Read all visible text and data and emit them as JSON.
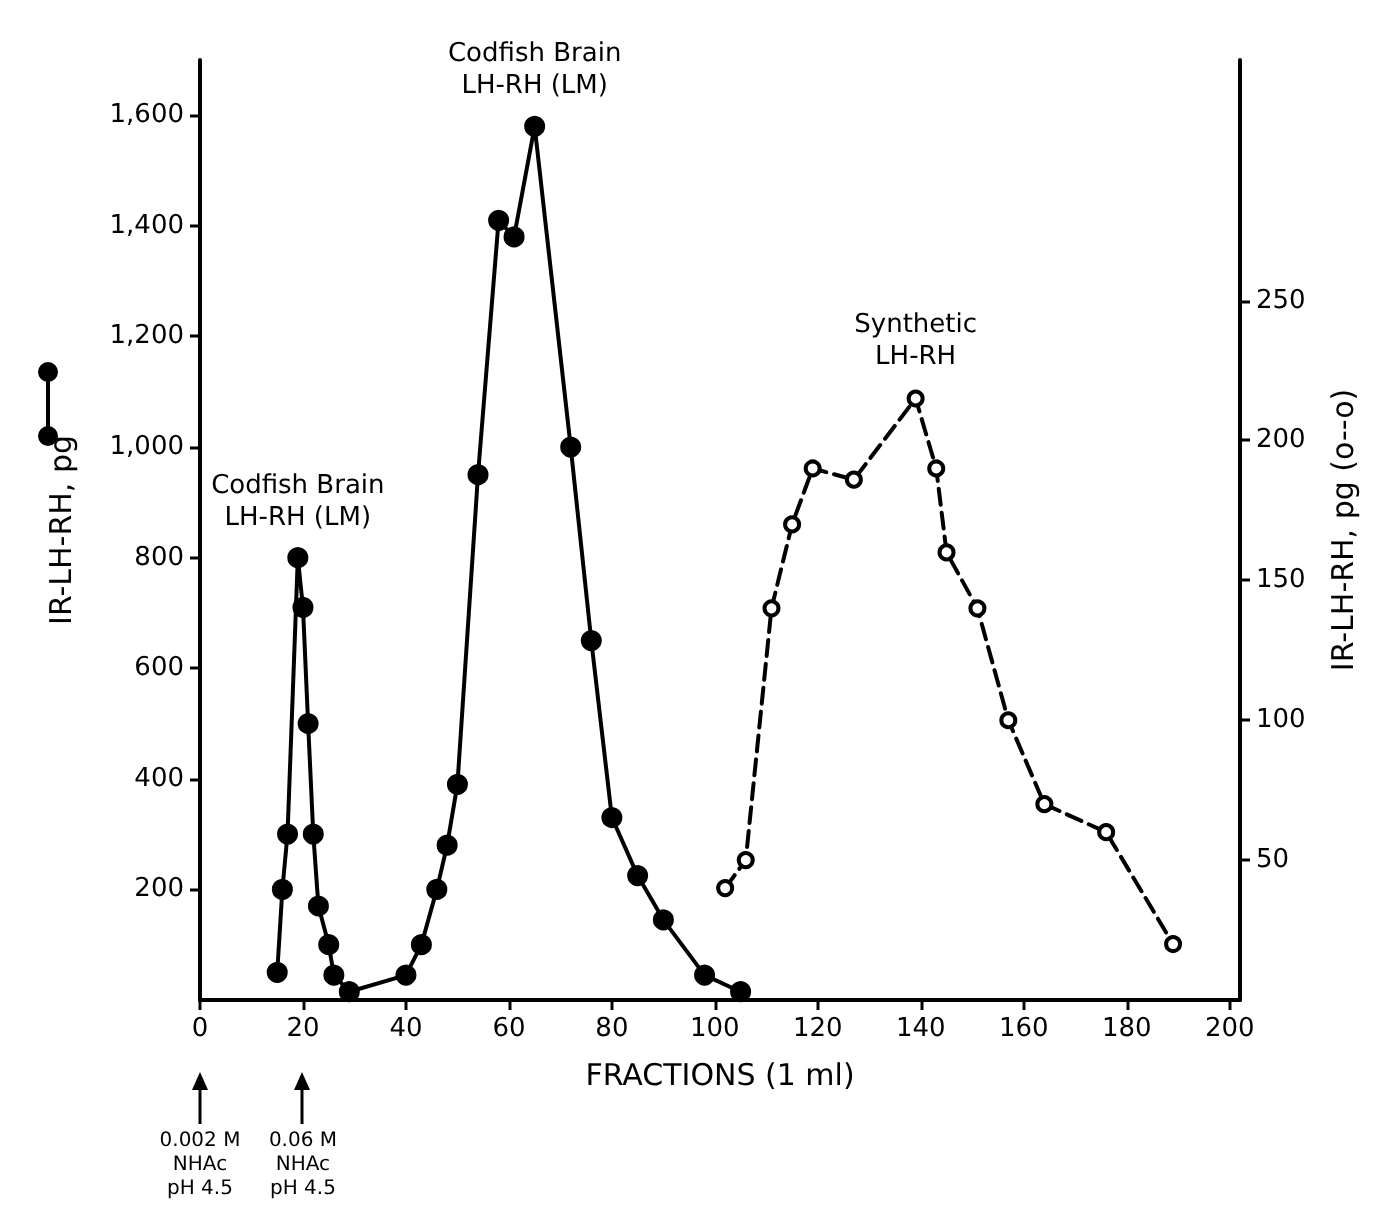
{
  "chart_data": {
    "type": "line",
    "xlabel": "FRACTIONS (1 ml)",
    "ylabel": "IR-LH-RH, pg",
    "y2label": "IR-LH-RH, pg (o--o)",
    "xlim": [
      0,
      202
    ],
    "xticks": [
      0,
      20,
      40,
      60,
      80,
      100,
      120,
      140,
      160,
      180,
      200
    ],
    "ylim": [
      0,
      1700
    ],
    "yticks": [
      200,
      400,
      600,
      800,
      {
        "value": 1000,
        "label": "1,000"
      },
      {
        "value": 1200,
        "label": "1,200"
      },
      {
        "value": 1400,
        "label": "1,400"
      },
      {
        "value": 1600,
        "label": "1,600"
      }
    ],
    "y2lim": [
      0,
      336
    ],
    "y2ticks": [
      50,
      100,
      150,
      200,
      250
    ],
    "series": [
      {
        "color": "#000000",
        "marker": "circle",
        "line_style": "solid",
        "x": [
          15,
          16,
          17,
          19,
          20,
          21,
          22,
          23,
          25,
          26,
          29,
          40,
          43,
          46,
          48,
          50,
          54,
          58,
          61,
          65,
          72,
          76,
          80,
          85,
          90,
          98,
          105
        ],
        "values": [
          50,
          200,
          300,
          800,
          710,
          500,
          300,
          170,
          100,
          45,
          15,
          45,
          100,
          200,
          280,
          390,
          950,
          1410,
          1380,
          1580,
          1000,
          650,
          330,
          225,
          145,
          45,
          15
        ]
      },
      {
        "color": "#000000",
        "marker": "circle",
        "line_style": "dashed",
        "axis": "y2",
        "x": [
          102,
          106,
          111,
          115,
          119,
          127,
          139,
          143,
          145,
          151,
          157,
          164,
          176,
          189
        ],
        "values": [
          40,
          50,
          140,
          170,
          190,
          186,
          215,
          190,
          160,
          140,
          100,
          70,
          60,
          20
        ]
      }
    ],
    "annotations": [
      {
        "text": "Codfish Brain\nLH-RH (LM)",
        "x": 19,
        "y": 800
      },
      {
        "text": "Codfish Brain\nLH-RH (LM)",
        "x": 65,
        "y": 1580
      },
      {
        "text": "Synthetic\nLH-RH",
        "x": 139,
        "y": 1090
      },
      "0.002 M\nNHAc\npH 4.5",
      "0.06 M\nNHAc\npH 4.5"
    ]
  }
}
